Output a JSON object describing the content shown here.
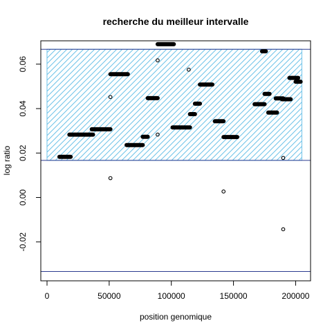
{
  "chart_data": {
    "type": "scatter",
    "title": "recherche du meilleur intervalle",
    "xlabel": "position genomique",
    "ylabel": "log ratio",
    "xlim": [
      -5000,
      212000
    ],
    "ylim": [
      -0.0375,
      0.0705
    ],
    "x_ticks": [
      0,
      50000,
      100000,
      150000,
      200000
    ],
    "x_tick_labels": [
      "0",
      "50000",
      "100000",
      "150000",
      "200000"
    ],
    "y_ticks": [
      -0.02,
      0.0,
      0.02,
      0.04,
      0.06
    ],
    "y_tick_labels": [
      "-0.02",
      "0.00",
      "0.02",
      "0.04",
      "0.06"
    ],
    "grid": false,
    "legend": "none",
    "interval_box": {
      "x_start": 0,
      "x_end": 205000,
      "y_low": 0.0167,
      "y_high": 0.0667,
      "hatch_color": "#6cc2e8"
    },
    "reference_lines": {
      "y_values": [
        0.0167,
        0.0667,
        -0.0333
      ],
      "color": "#2b3a8f"
    },
    "segments": [
      {
        "x_start": 10000,
        "x_end": 19000,
        "y": 0.0183
      },
      {
        "x_start": 18000,
        "x_end": 37000,
        "y": 0.0283
      },
      {
        "x_start": 36000,
        "x_end": 51000,
        "y": 0.0307
      },
      {
        "x_start": 51000,
        "x_end": 65000,
        "y": 0.0555
      },
      {
        "x_start": 64000,
        "x_end": 77000,
        "y": 0.0236
      },
      {
        "x_start": 77000,
        "x_end": 81000,
        "y": 0.0273
      },
      {
        "x_start": 81000,
        "x_end": 89000,
        "y": 0.0447
      },
      {
        "x_start": 89000,
        "x_end": 102000,
        "y": 0.069
      },
      {
        "x_start": 101000,
        "x_end": 115000,
        "y": 0.0315
      },
      {
        "x_start": 115000,
        "x_end": 119000,
        "y": 0.0375
      },
      {
        "x_start": 119000,
        "x_end": 123000,
        "y": 0.0422
      },
      {
        "x_start": 123000,
        "x_end": 133000,
        "y": 0.0508
      },
      {
        "x_start": 135000,
        "x_end": 142000,
        "y": 0.0343
      },
      {
        "x_start": 142000,
        "x_end": 153000,
        "y": 0.0272
      },
      {
        "x_start": 167000,
        "x_end": 175000,
        "y": 0.042
      },
      {
        "x_start": 173000,
        "x_end": 176000,
        "y": 0.0658
      },
      {
        "x_start": 175000,
        "x_end": 179000,
        "y": 0.0466
      },
      {
        "x_start": 178000,
        "x_end": 185000,
        "y": 0.0382
      },
      {
        "x_start": 184000,
        "x_end": 190000,
        "y": 0.0446
      },
      {
        "x_start": 189000,
        "x_end": 196000,
        "y": 0.0442
      },
      {
        "x_start": 195000,
        "x_end": 202000,
        "y": 0.0538
      },
      {
        "x_start": 200000,
        "x_end": 204000,
        "y": 0.0521
      }
    ],
    "outlier_points": [
      {
        "x": 51000,
        "y": 0.0452
      },
      {
        "x": 51000,
        "y": 0.0087
      },
      {
        "x": 89000,
        "y": 0.0283
      },
      {
        "x": 89000,
        "y": 0.0617
      },
      {
        "x": 114000,
        "y": 0.0575
      },
      {
        "x": 142000,
        "y": 0.0027
      },
      {
        "x": 190000,
        "y": 0.0178
      },
      {
        "x": 190000,
        "y": -0.0143
      }
    ]
  }
}
